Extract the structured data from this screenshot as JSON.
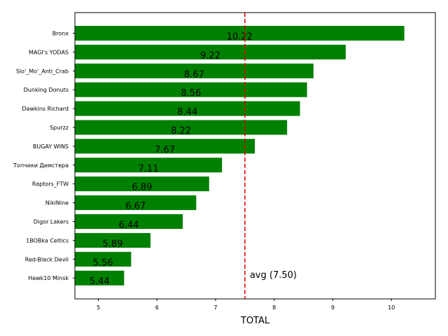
{
  "chart_data": {
    "type": "bar",
    "orientation": "horizontal",
    "categories": [
      "Bronx",
      "MAGI's YODAS",
      "Slo'_Mo'_Anti_Crab",
      "Dunking Donuts",
      "Dawkins Richard",
      "Spurzz",
      "BUGAY WINS",
      "Топчики Димстера",
      "Raptors_FTW",
      "NikiNine",
      "Digor Lakers",
      "1BOBka Celtics",
      "Red-Black Devil",
      "Hawk10 Minsk"
    ],
    "values": [
      10.22,
      9.22,
      8.67,
      8.56,
      8.44,
      8.22,
      7.67,
      7.11,
      6.89,
      6.67,
      6.44,
      5.89,
      5.56,
      5.44
    ],
    "value_labels": [
      "10.22",
      "9.22",
      "8.67",
      "8.56",
      "8.44",
      "8.22",
      "7.67",
      "7.11",
      "6.89",
      "6.67",
      "6.44",
      "5.89",
      "5.56",
      "5.44"
    ],
    "xlabel": "TOTAL",
    "ylabel": "",
    "xlim": [
      4.6,
      10.75
    ],
    "xticks": [
      "5",
      "6",
      "7",
      "8",
      "9",
      "10"
    ],
    "bar_color": "#008000",
    "grid": false,
    "reference_line": {
      "value": 7.5,
      "label": "avg (7.50)",
      "color": "#dd0000",
      "style": "dashed"
    }
  }
}
